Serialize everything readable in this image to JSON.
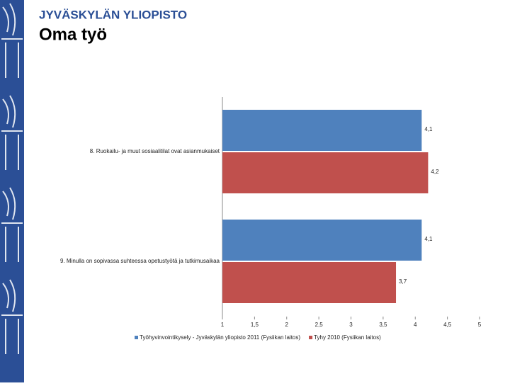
{
  "header": {
    "institution": "JYVÄSKYLÄN YLIOPISTO",
    "title": "Oma työ"
  },
  "chart_data": {
    "type": "bar",
    "orientation": "horizontal",
    "categories": [
      "8. Ruokailu- ja muut sosiaalitilat ovat asianmukaiset",
      "9. Minulla on sopivassa suhteessa opetustyötä ja tutkimusaikaa"
    ],
    "series": [
      {
        "name": "Työhyvinvointikysely - Jyväskylän yliopisto 2011 (Fysiikan laitos)",
        "color": "#4f81bd",
        "values": [
          4.1,
          4.1
        ],
        "value_labels": [
          "4,1",
          "4,1"
        ]
      },
      {
        "name": "Tyhy 2010 (Fysiikan laitos)",
        "color": "#c0504d",
        "values": [
          4.2,
          3.7
        ],
        "value_labels": [
          "4,2",
          "3,7"
        ]
      }
    ],
    "xlim": [
      1,
      5
    ],
    "xticks": [
      1,
      {
        "value": 1.5,
        "label": "1,5"
      },
      2,
      {
        "value": 2.5,
        "label": "2,5"
      },
      3,
      {
        "value": 3.5,
        "label": "3,5"
      },
      4,
      {
        "value": 4.5,
        "label": "4,5"
      },
      5
    ],
    "grid": false,
    "legend": "bottom"
  }
}
